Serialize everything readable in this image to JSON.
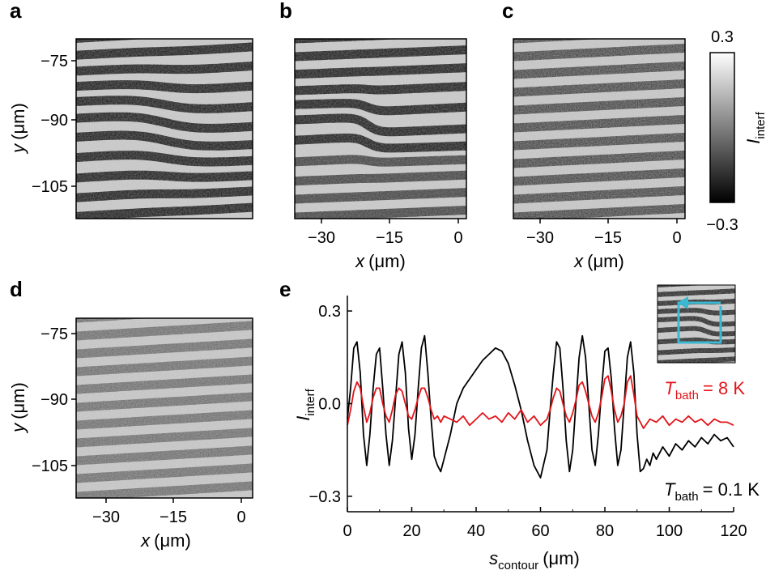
{
  "panels": [
    {
      "id": "a",
      "letter": "a"
    },
    {
      "id": "b",
      "letter": "b"
    },
    {
      "id": "c",
      "letter": "c"
    },
    {
      "id": "d",
      "letter": "d"
    }
  ],
  "image_axes": {
    "y_title": "y",
    "y_unit": "(μm)",
    "y_ticks": [
      "−75",
      "−90",
      "−105"
    ],
    "x_title": "x",
    "x_unit": "(μm)",
    "x_ticks": [
      "−30",
      "−15",
      "0"
    ]
  },
  "colorbar": {
    "max_label": "0.3",
    "min_label": "−0.3",
    "title_main": "I",
    "title_sub": "interf",
    "range": [
      -0.3,
      0.3
    ]
  },
  "panel_e": {
    "letter": "e",
    "ylabel_main": "I",
    "ylabel_sub": "interf",
    "xlabel_main": "s",
    "xlabel_sub": "contour",
    "xlabel_unit": "(μm)",
    "legend_red_main": "T",
    "legend_red_sub": "bath",
    "legend_red_value": "= 8 K",
    "legend_black_main": "T",
    "legend_black_sub": "bath",
    "legend_black_value": "= 0.1 K",
    "red_color": "#e3151a",
    "black_color": "#000000",
    "inset_path_color": "#3cb8d0"
  },
  "chart_data": {
    "type": "line",
    "xlim": [
      0,
      120
    ],
    "ylim": [
      -0.35,
      0.35
    ],
    "x_ticks": [
      0,
      20,
      40,
      60,
      80,
      100,
      120
    ],
    "x_tick_labels": [
      "0",
      "20",
      "40",
      "60",
      "80",
      "100",
      "120"
    ],
    "y_ticks": [
      0.3,
      0.0,
      -0.3
    ],
    "y_tick_labels": [
      "0.3",
      "0.0",
      "−0.3"
    ],
    "series": [
      {
        "color": "#000000",
        "x": [
          0,
          1,
          2,
          3,
          4,
          5,
          6,
          7,
          8,
          9,
          10,
          11,
          12,
          13,
          14,
          15,
          16,
          17,
          18,
          19,
          20,
          21,
          22,
          23,
          24,
          25,
          26,
          27,
          28,
          29,
          30,
          32,
          34,
          36,
          38,
          40,
          42,
          44,
          46,
          48,
          50,
          52,
          54,
          56,
          58,
          60,
          62,
          63,
          64,
          65,
          66,
          67,
          68,
          69,
          70,
          71,
          72,
          73,
          74,
          75,
          76,
          77,
          78,
          79,
          80,
          81,
          82,
          83,
          84,
          85,
          86,
          87,
          88,
          89,
          90,
          91,
          92,
          93,
          94,
          95,
          96,
          98,
          100,
          102,
          104,
          106,
          108,
          110,
          112,
          114,
          116,
          118,
          120
        ],
        "y": [
          -0.05,
          0.05,
          0.18,
          0.2,
          0.1,
          -0.1,
          -0.2,
          -0.1,
          0.05,
          0.16,
          0.18,
          0.05,
          -0.1,
          -0.2,
          -0.12,
          0.02,
          0.16,
          0.2,
          0.1,
          -0.08,
          -0.18,
          -0.1,
          0.05,
          0.18,
          0.22,
          0.1,
          -0.05,
          -0.17,
          -0.2,
          -0.22,
          -0.18,
          -0.1,
          0.0,
          0.05,
          0.08,
          0.11,
          0.14,
          0.16,
          0.18,
          0.17,
          0.13,
          0.06,
          -0.02,
          -0.12,
          -0.2,
          -0.24,
          -0.15,
          -0.02,
          0.1,
          0.2,
          0.18,
          0.05,
          -0.12,
          -0.22,
          -0.15,
          0.0,
          0.15,
          0.22,
          0.15,
          0.0,
          -0.15,
          -0.2,
          -0.1,
          0.05,
          0.17,
          0.18,
          0.08,
          -0.08,
          -0.2,
          -0.15,
          0.0,
          0.15,
          0.2,
          0.1,
          -0.1,
          -0.22,
          -0.21,
          -0.18,
          -0.2,
          -0.16,
          -0.18,
          -0.14,
          -0.17,
          -0.13,
          -0.15,
          -0.12,
          -0.14,
          -0.11,
          -0.13,
          -0.1,
          -0.12,
          -0.11,
          -0.14
        ]
      },
      {
        "color": "#e3151a",
        "x": [
          0,
          1,
          2,
          3,
          4,
          5,
          6,
          7,
          8,
          9,
          10,
          11,
          12,
          13,
          14,
          15,
          16,
          17,
          18,
          19,
          20,
          21,
          22,
          23,
          24,
          25,
          26,
          27,
          28,
          29,
          30,
          32,
          34,
          36,
          38,
          40,
          42,
          44,
          46,
          48,
          50,
          52,
          54,
          56,
          58,
          60,
          62,
          63,
          64,
          65,
          66,
          67,
          68,
          69,
          70,
          71,
          72,
          73,
          74,
          75,
          76,
          77,
          78,
          79,
          80,
          81,
          82,
          83,
          84,
          85,
          86,
          87,
          88,
          89,
          90,
          92,
          94,
          96,
          98,
          100,
          102,
          104,
          106,
          108,
          110,
          112,
          114,
          116,
          118,
          120
        ],
        "y": [
          -0.07,
          -0.02,
          0.04,
          0.07,
          0.05,
          -0.01,
          -0.06,
          -0.03,
          0.02,
          0.05,
          0.05,
          0.0,
          -0.04,
          -0.06,
          -0.02,
          0.03,
          0.05,
          0.04,
          0.0,
          -0.04,
          -0.05,
          -0.02,
          0.02,
          0.05,
          0.05,
          0.02,
          -0.02,
          -0.05,
          -0.04,
          -0.06,
          -0.04,
          -0.05,
          -0.06,
          -0.04,
          -0.07,
          -0.05,
          -0.03,
          -0.05,
          -0.04,
          -0.06,
          -0.03,
          -0.05,
          -0.02,
          -0.06,
          -0.04,
          -0.07,
          -0.05,
          -0.02,
          0.02,
          0.05,
          0.04,
          0.0,
          -0.04,
          -0.06,
          -0.03,
          0.01,
          0.06,
          0.07,
          0.04,
          0.0,
          -0.04,
          -0.06,
          -0.03,
          0.02,
          0.08,
          0.09,
          0.04,
          -0.02,
          -0.06,
          -0.04,
          0.0,
          0.07,
          0.09,
          0.03,
          -0.04,
          -0.08,
          -0.05,
          -0.06,
          -0.04,
          -0.07,
          -0.05,
          -0.06,
          -0.04,
          -0.06,
          -0.05,
          -0.07,
          -0.05,
          -0.06,
          -0.06,
          -0.07
        ]
      }
    ]
  }
}
